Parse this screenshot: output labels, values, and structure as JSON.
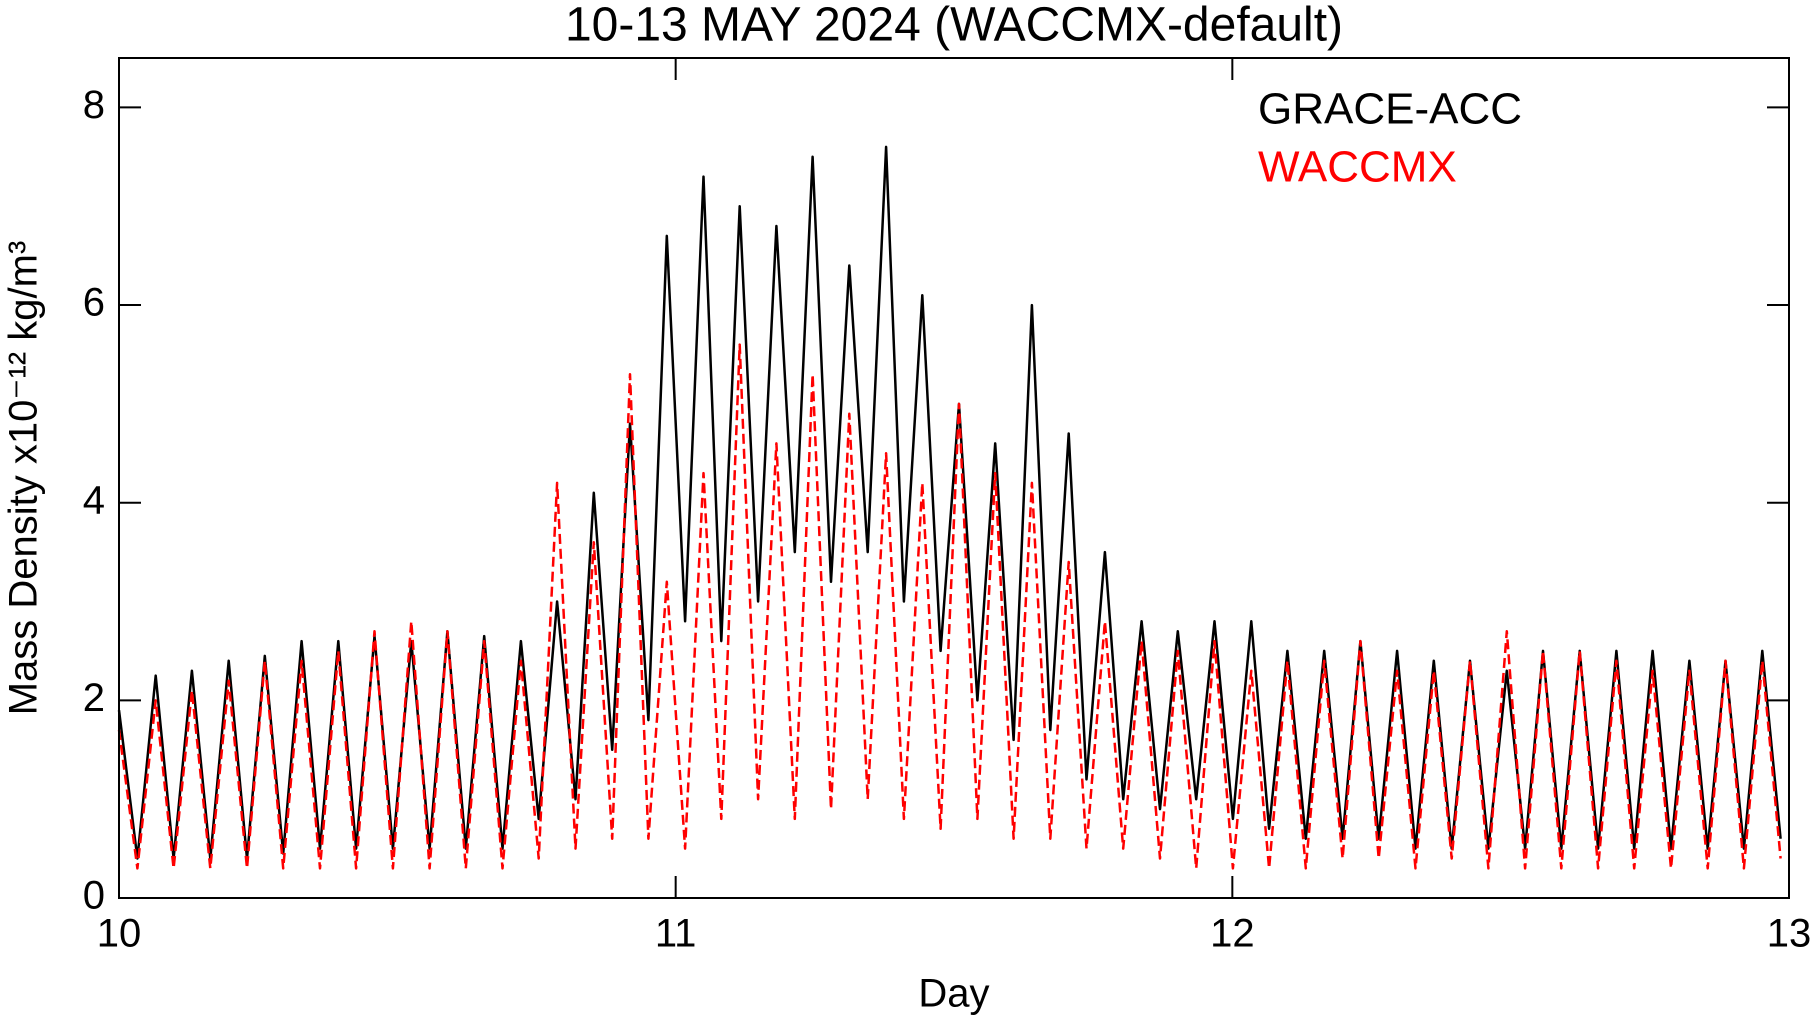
{
  "chart_data": {
    "type": "line",
    "title": "10-13 MAY 2024 (WACCMX-default)",
    "x_label": "Day",
    "y_label": "Mass Density x10⁻¹² kg/m³",
    "xlim": [
      10,
      13
    ],
    "xticks": [
      10,
      11,
      12,
      13
    ],
    "ylim": [
      0,
      8.5
    ],
    "yticks": [
      0,
      2,
      4,
      6,
      8
    ],
    "legend": "upper right",
    "x": [
      10.0,
      10.033,
      10.066,
      10.098,
      10.131,
      10.164,
      10.197,
      10.23,
      10.262,
      10.295,
      10.328,
      10.361,
      10.394,
      10.426,
      10.459,
      10.492,
      10.525,
      10.558,
      10.59,
      10.623,
      10.656,
      10.689,
      10.722,
      10.754,
      10.787,
      10.82,
      10.853,
      10.886,
      10.918,
      10.951,
      10.984,
      11.017,
      11.05,
      11.082,
      11.115,
      11.148,
      11.181,
      11.214,
      11.246,
      11.279,
      11.312,
      11.345,
      11.378,
      11.41,
      11.443,
      11.476,
      11.509,
      11.542,
      11.574,
      11.607,
      11.64,
      11.673,
      11.706,
      11.738,
      11.771,
      11.804,
      11.837,
      11.87,
      11.902,
      11.935,
      11.968,
      12.001,
      12.034,
      12.066,
      12.099,
      12.132,
      12.165,
      12.198,
      12.23,
      12.263,
      12.296,
      12.329,
      12.362,
      12.394,
      12.427,
      12.46,
      12.493,
      12.526,
      12.558,
      12.591,
      12.624,
      12.657,
      12.69,
      12.722,
      12.755,
      12.788,
      12.821,
      12.854,
      12.886,
      12.919,
      12.952,
      12.985
    ],
    "series": [
      {
        "name": "GRACE-ACC",
        "color": "#000000",
        "dash": false,
        "values": [
          1.9,
          0.4,
          2.25,
          0.4,
          2.3,
          0.4,
          2.4,
          0.4,
          2.45,
          0.45,
          2.6,
          0.5,
          2.6,
          0.5,
          2.65,
          0.5,
          2.6,
          0.5,
          2.7,
          0.5,
          2.65,
          0.5,
          2.6,
          0.8,
          3.0,
          1.0,
          4.1,
          1.5,
          4.8,
          1.8,
          6.7,
          2.8,
          7.3,
          2.6,
          7.0,
          3.0,
          6.8,
          3.5,
          7.5,
          3.2,
          6.4,
          3.5,
          7.6,
          3.0,
          6.1,
          2.5,
          5.0,
          2.0,
          4.6,
          1.6,
          6.0,
          1.7,
          4.7,
          1.2,
          3.5,
          1.0,
          2.8,
          0.9,
          2.7,
          1.0,
          2.8,
          0.8,
          2.8,
          0.7,
          2.5,
          0.6,
          2.5,
          0.6,
          2.6,
          0.6,
          2.5,
          0.5,
          2.4,
          0.5,
          2.4,
          0.5,
          2.3,
          0.5,
          2.5,
          0.5,
          2.5,
          0.5,
          2.5,
          0.5,
          2.5,
          0.5,
          2.4,
          0.5,
          2.4,
          0.5,
          2.5,
          0.6
        ]
      },
      {
        "name": "WACCMX",
        "color": "#ff0000",
        "dash": true,
        "values": [
          1.7,
          0.3,
          2.0,
          0.3,
          2.1,
          0.3,
          2.2,
          0.3,
          2.4,
          0.3,
          2.4,
          0.3,
          2.5,
          0.3,
          2.7,
          0.3,
          2.8,
          0.3,
          2.7,
          0.3,
          2.6,
          0.3,
          2.4,
          0.4,
          4.2,
          0.5,
          3.6,
          0.6,
          5.3,
          0.6,
          3.2,
          0.5,
          4.3,
          0.8,
          5.6,
          1.0,
          4.6,
          0.8,
          5.3,
          0.9,
          4.9,
          1.0,
          4.5,
          0.8,
          4.2,
          0.7,
          5.0,
          0.8,
          4.3,
          0.6,
          4.2,
          0.6,
          3.4,
          0.5,
          2.8,
          0.5,
          2.6,
          0.4,
          2.5,
          0.3,
          2.6,
          0.3,
          2.3,
          0.3,
          2.4,
          0.3,
          2.4,
          0.4,
          2.6,
          0.4,
          2.3,
          0.3,
          2.3,
          0.4,
          2.4,
          0.3,
          2.7,
          0.3,
          2.5,
          0.3,
          2.5,
          0.3,
          2.4,
          0.3,
          2.3,
          0.3,
          2.3,
          0.3,
          2.4,
          0.3,
          2.4,
          0.4
        ]
      }
    ]
  }
}
